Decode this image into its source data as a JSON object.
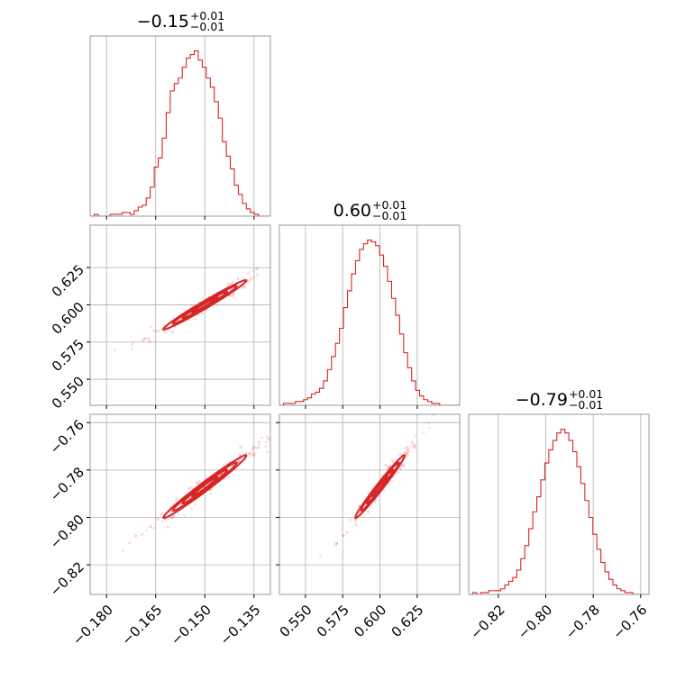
{
  "chart_data": {
    "type": "scatter",
    "title": "",
    "params": [
      {
        "median": "−0.15",
        "err_up": "+0.01",
        "err_down": "−0.01",
        "mean": -0.15,
        "sd": 0.0065,
        "range": [
          -0.185,
          -0.13
        ],
        "ticks": [
          -0.18,
          -0.165,
          -0.15,
          -0.135
        ],
        "tick_labels": [
          "−0.180",
          "−0.165",
          "−0.150",
          "−0.135"
        ]
      },
      {
        "median": "0.60",
        "err_up": "+0.01",
        "err_down": "−0.01",
        "mean": 0.6,
        "sd": 0.0085,
        "range": [
          0.5325,
          0.6535
        ],
        "ticks": [
          0.55,
          0.575,
          0.6,
          0.625
        ],
        "tick_labels": [
          "0.550",
          "0.575",
          "0.600",
          "0.625"
        ]
      },
      {
        "median": "−0.79",
        "err_up": "+0.01",
        "err_down": "−0.01",
        "mean": -0.787,
        "sd": 0.0068,
        "range": [
          -0.8325,
          -0.7565
        ],
        "ticks": [
          -0.82,
          -0.8,
          -0.78,
          -0.76
        ],
        "tick_labels": [
          "−0.82",
          "−0.80",
          "−0.78",
          "−0.76"
        ]
      }
    ],
    "histograms": [
      [
        0,
        1,
        0,
        0,
        0,
        1,
        1,
        1,
        2,
        2,
        1,
        3,
        5,
        6,
        10,
        16,
        27,
        32,
        43,
        57,
        69,
        73,
        76,
        82,
        87,
        89,
        91,
        86,
        82,
        76,
        71,
        63,
        54,
        41,
        33,
        26,
        17,
        12,
        7,
        4,
        2,
        1,
        0,
        0,
        0
      ],
      [
        0,
        1,
        1,
        1,
        2,
        2,
        3,
        4,
        6,
        7,
        9,
        13,
        19,
        26,
        33,
        41,
        52,
        61,
        70,
        77,
        83,
        86,
        88,
        87,
        85,
        80,
        74,
        66,
        57,
        48,
        38,
        28,
        20,
        13,
        8,
        5,
        3,
        2,
        1,
        1,
        0,
        0,
        0,
        0,
        0
      ],
      [
        0,
        1,
        0,
        1,
        1,
        2,
        2,
        2,
        3,
        5,
        7,
        9,
        13,
        19,
        26,
        35,
        44,
        52,
        61,
        70,
        77,
        82,
        86,
        88,
        86,
        82,
        76,
        68,
        59,
        50,
        41,
        32,
        24,
        17,
        12,
        8,
        5,
        3,
        2,
        1,
        1,
        0,
        0,
        0,
        0
      ]
    ],
    "grid": true,
    "legend": "none"
  }
}
